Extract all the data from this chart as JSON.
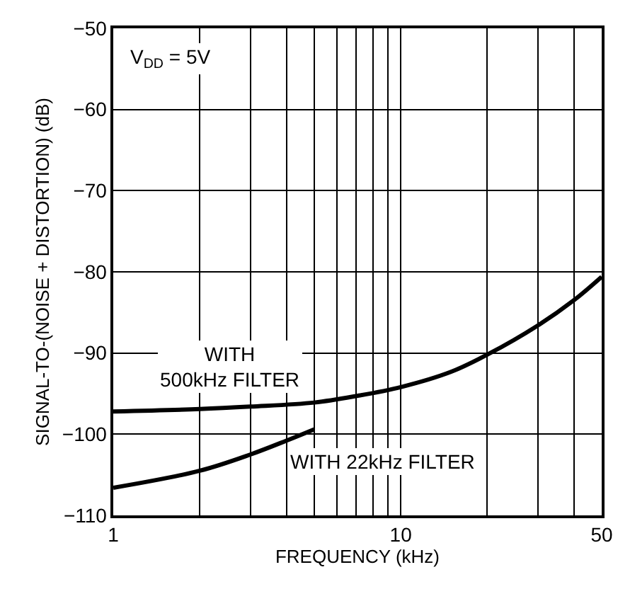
{
  "chart_data": {
    "type": "line",
    "xlabel": "FREQUENCY (kHz)",
    "ylabel": "SIGNAL-TO-(NOISE + DISTORTION) (dB)",
    "log": "x",
    "xlim": [
      1,
      50
    ],
    "ylim": [
      -110,
      -50
    ],
    "xticks": [
      1,
      {
        "value": 2,
        "label": null
      },
      {
        "value": 3,
        "label": null
      },
      {
        "value": 4,
        "label": null
      },
      {
        "value": 5,
        "label": null
      },
      {
        "value": 6,
        "label": null
      },
      {
        "value": 7,
        "label": null
      },
      {
        "value": 8,
        "label": null
      },
      {
        "value": 9,
        "label": null
      },
      10,
      {
        "value": 20,
        "label": null
      },
      {
        "value": 30,
        "label": null
      },
      {
        "value": 40,
        "label": null
      },
      50
    ],
    "yticks": [
      -110,
      -100,
      -90,
      -80,
      -70,
      -60,
      -50
    ],
    "grid": true,
    "marker": "none",
    "line_style": "solid",
    "series": [
      {
        "color": "#000000",
        "x": [
          1,
          2,
          3,
          5,
          7,
          10,
          15,
          20,
          30,
          40,
          50
        ],
        "values": [
          -97.2,
          -96.9,
          -96.6,
          -96.1,
          -95.3,
          -94.2,
          -92.3,
          -90.2,
          -86.6,
          -83.5,
          -80.6
        ]
      },
      {
        "color": "#000000",
        "x": [
          1,
          2,
          3,
          4,
          5
        ],
        "values": [
          -106.6,
          -104.5,
          -102.5,
          -100.8,
          -99.4
        ]
      }
    ],
    "annotations": [
      "V$_{DD}$ = 5V",
      "WITH\n500kHz FILTER",
      "WITH 22kHz FILTER"
    ]
  }
}
